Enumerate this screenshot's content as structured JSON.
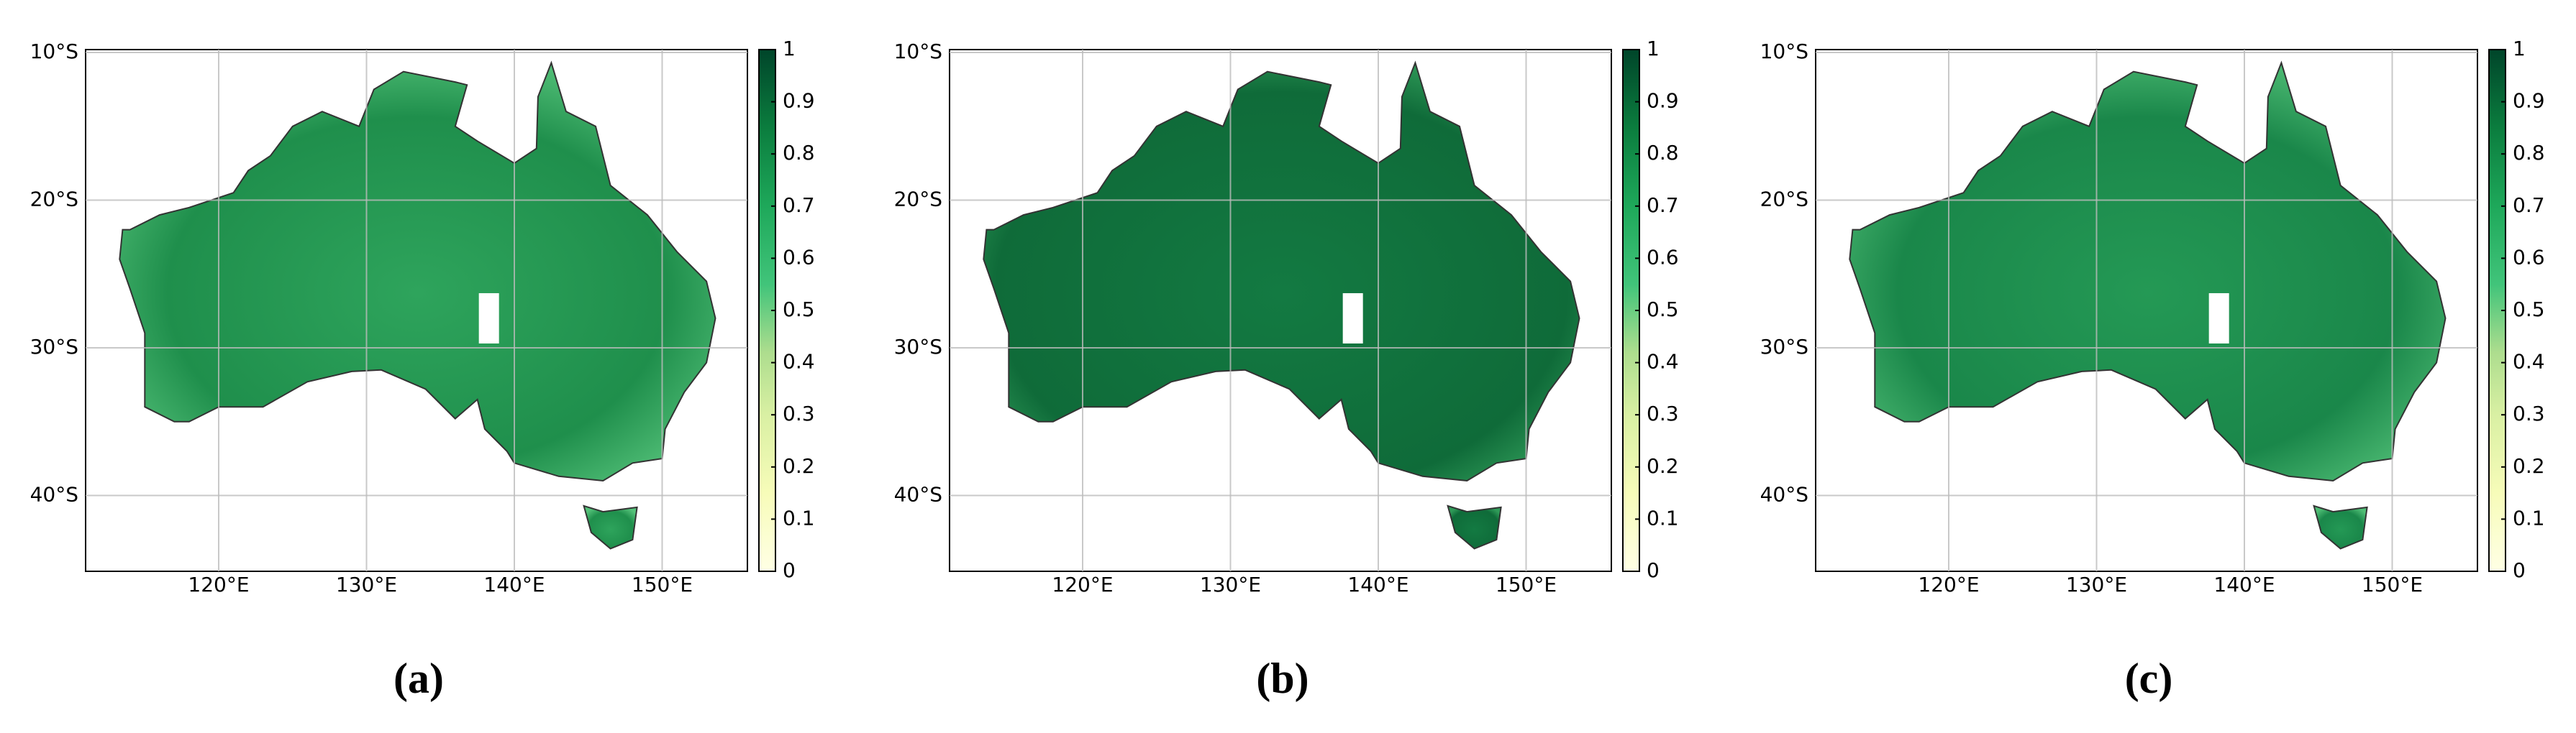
{
  "panels": [
    {
      "label": "(a)",
      "lat_ticks": [
        "10°S",
        "20°S",
        "30°S",
        "40°S"
      ],
      "lon_ticks": [
        "120°E",
        "130°E",
        "140°E",
        "150°E"
      ],
      "colorbar_ticks": [
        0,
        0.1,
        0.2,
        0.3,
        0.4,
        0.5,
        0.6,
        0.7,
        0.8,
        0.9,
        1
      ]
    },
    {
      "label": "(b)",
      "lat_ticks": [
        "10°S",
        "20°S",
        "30°S",
        "40°S"
      ],
      "lon_ticks": [
        "120°E",
        "130°E",
        "140°E",
        "150°E"
      ],
      "colorbar_ticks": [
        0,
        0.1,
        0.2,
        0.3,
        0.4,
        0.5,
        0.6,
        0.7,
        0.8,
        0.9,
        1
      ]
    },
    {
      "label": "(c)",
      "lat_ticks": [
        "10°S",
        "20°S",
        "30°S",
        "40°S"
      ],
      "lon_ticks": [
        "120°E",
        "130°E",
        "140°E",
        "150°E"
      ],
      "colorbar_ticks": [
        0,
        0.1,
        0.2,
        0.3,
        0.4,
        0.5,
        0.6,
        0.7,
        0.8,
        0.9,
        1
      ]
    }
  ]
}
